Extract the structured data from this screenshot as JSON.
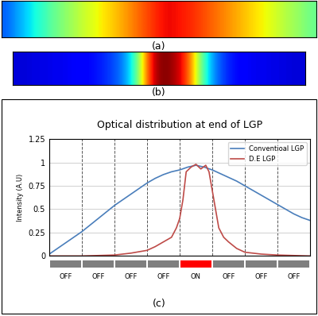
{
  "chart_data": [
    {
      "type": "heatmap",
      "label": "(a)",
      "tick_labels": false,
      "color_range": [
        0,
        1
      ],
      "cells": [
        [
          0.22,
          0.28,
          0.33,
          0.38,
          0.43,
          0.48,
          0.52,
          0.56,
          0.6,
          0.63,
          0.67,
          0.7,
          0.74,
          0.78,
          0.82,
          0.86,
          0.9,
          0.9,
          0.88,
          0.86,
          0.83,
          0.8,
          0.77,
          0.74,
          0.71,
          0.68,
          0.65,
          0.62,
          0.58,
          0.55,
          0.52,
          0.48
        ]
      ]
    },
    {
      "type": "heatmap",
      "label": "(b)",
      "tick_labels": false,
      "color_range": [
        0,
        1
      ],
      "cells": [
        [
          0.08,
          0.08,
          0.09,
          0.09,
          0.1,
          0.1,
          0.11,
          0.12,
          0.13,
          0.15,
          0.18,
          0.22,
          0.3,
          0.45,
          0.75,
          0.95,
          1.0,
          0.97,
          0.9,
          0.75,
          0.5,
          0.32,
          0.22,
          0.16,
          0.13,
          0.11,
          0.1,
          0.1,
          0.09,
          0.09,
          0.08,
          0.08
        ]
      ]
    },
    {
      "type": "line",
      "label": "(c)",
      "title": "Optical distribution at end of LGP",
      "y_label": "Intensity (A.U)",
      "xlim": [
        0,
        8
      ],
      "xticks": [
        1,
        2,
        3,
        4,
        5,
        6,
        7
      ],
      "ylim": [
        0,
        1.25
      ],
      "yticks": [
        0,
        0.25,
        0.5,
        0.75,
        1,
        1.25
      ],
      "grid": true,
      "legend": "upper right",
      "tick_labels": "y",
      "series": [
        {
          "name": "Conventioal LGP",
          "color": "#4a7ebb",
          "x": [
            0,
            0.25,
            0.5,
            0.75,
            1,
            1.25,
            1.5,
            1.75,
            2,
            2.25,
            2.5,
            2.75,
            3,
            3.25,
            3.5,
            3.75,
            4,
            4.25,
            4.5,
            4.75,
            5,
            5.25,
            5.5,
            5.75,
            6,
            6.25,
            6.5,
            6.75,
            7,
            7.25,
            7.5,
            7.75,
            8
          ],
          "values": [
            0.02,
            0.08,
            0.14,
            0.2,
            0.26,
            0.33,
            0.4,
            0.47,
            0.54,
            0.6,
            0.66,
            0.72,
            0.78,
            0.83,
            0.87,
            0.9,
            0.92,
            0.95,
            0.97,
            0.95,
            0.92,
            0.88,
            0.84,
            0.8,
            0.75,
            0.7,
            0.65,
            0.6,
            0.55,
            0.5,
            0.45,
            0.41,
            0.38
          ]
        },
        {
          "name": "D.E LGP",
          "color": "#be4b48",
          "x": [
            0,
            1,
            2,
            2.5,
            3,
            3.25,
            3.5,
            3.75,
            3.9,
            4,
            4.1,
            4.2,
            4.35,
            4.5,
            4.65,
            4.8,
            4.9,
            5,
            5.1,
            5.2,
            5.35,
            5.5,
            5.75,
            6,
            6.5,
            7,
            8
          ],
          "values": [
            0,
            0,
            0.01,
            0.03,
            0.06,
            0.1,
            0.15,
            0.2,
            0.3,
            0.4,
            0.6,
            0.9,
            0.95,
            0.98,
            0.93,
            0.97,
            0.9,
            0.7,
            0.5,
            0.3,
            0.2,
            0.15,
            0.08,
            0.04,
            0.02,
            0.01,
            0
          ]
        }
      ],
      "segments": {
        "labels": [
          "OFF",
          "OFF",
          "OFF",
          "OFF",
          "ON",
          "OFF",
          "OFF",
          "OFF"
        ],
        "colors": [
          "#7f7f7f",
          "#7f7f7f",
          "#7f7f7f",
          "#7f7f7f",
          "#ff0000",
          "#7f7f7f",
          "#7f7f7f",
          "#7f7f7f"
        ]
      }
    }
  ]
}
